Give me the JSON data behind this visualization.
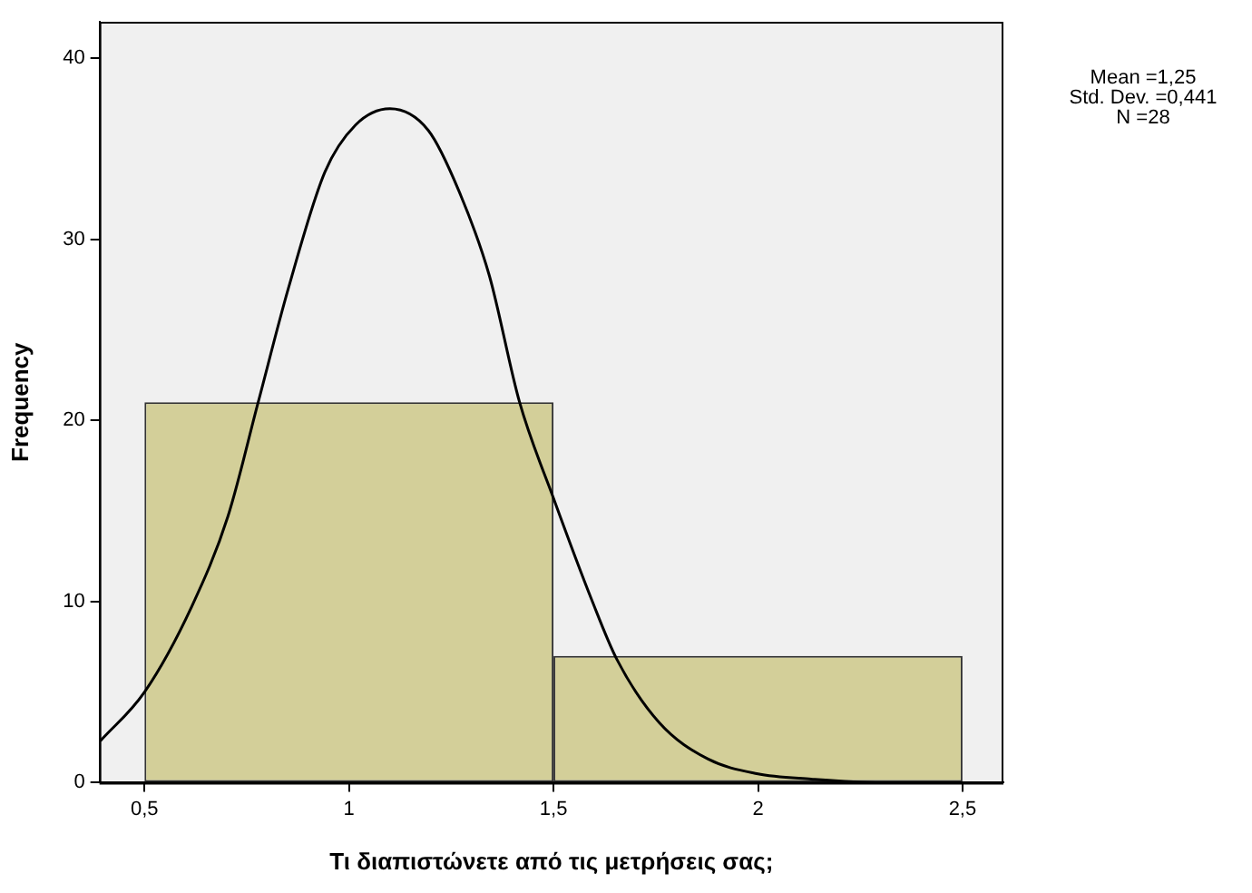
{
  "chart_data": {
    "type": "histogram",
    "xlabel": "Τι διαπιστώνετε από τις μετρήσεις σας;",
    "ylabel": "Frequency",
    "annotations": [
      "Mean =1,25",
      "Std. Dev. =0,441",
      "N =28"
    ],
    "bins": [
      0.5,
      1.5,
      2.5
    ],
    "values": [
      21,
      7
    ],
    "color": "#d3cf99",
    "series": [
      {
        "type": "line",
        "color": "#000000",
        "x": [
          0.392,
          0.5,
          0.615,
          0.704,
          0.778,
          0.852,
          0.941,
          1.016,
          1.1,
          1.194,
          1.268,
          1.343,
          1.417,
          1.5,
          1.595,
          1.655,
          1.759,
          1.878,
          1.997,
          2.13,
          2.3,
          2.5
        ],
        "values": [
          2.3,
          5.0,
          9.7,
          14.7,
          21.0,
          27.3,
          33.7,
          36.3,
          37.2,
          36.0,
          32.7,
          28.0,
          21.0,
          15.7,
          10.0,
          6.8,
          3.3,
          1.3,
          0.5,
          0.2,
          0,
          0
        ]
      }
    ],
    "xlim": [
      0.39,
      2.6
    ],
    "ylim": [
      0,
      42
    ],
    "xticks": [
      {
        "value": 0.5,
        "label": "0,5"
      },
      1,
      {
        "value": 1.5,
        "label": "1,5"
      },
      2,
      {
        "value": 2.5,
        "label": "2,5"
      }
    ],
    "yticks": [
      0,
      10,
      20,
      30,
      40
    ],
    "grid": false,
    "legend": false,
    "marker": "none",
    "line_style": "solid"
  }
}
